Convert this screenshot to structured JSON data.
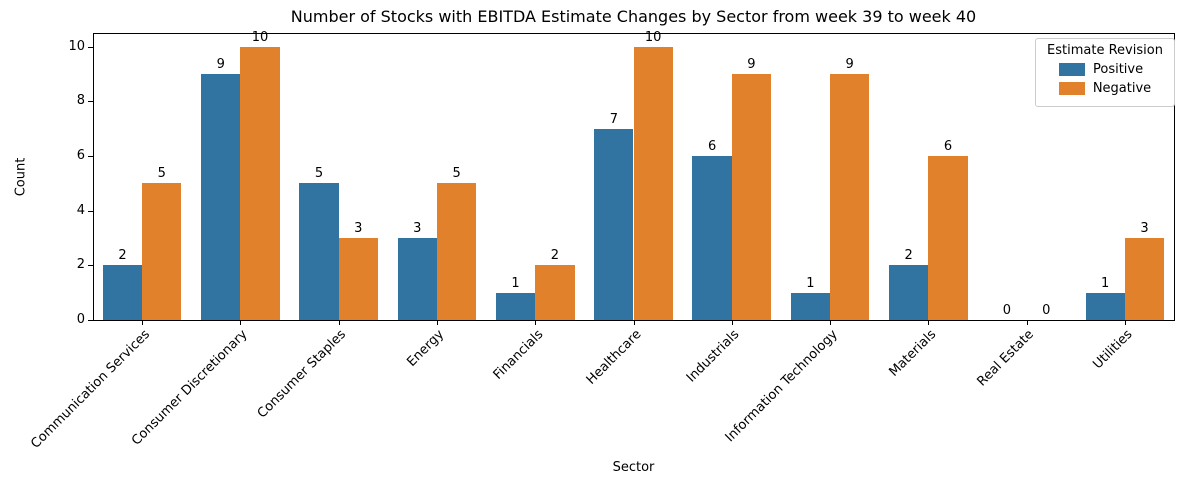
{
  "chart_data": {
    "type": "bar",
    "title": "Number of Stocks with EBITDA Estimate Changes by Sector from week 39 to week 40",
    "xlabel": "Sector",
    "ylabel": "Count",
    "categories": [
      "Communication Services",
      "Consumer Discretionary",
      "Consumer Staples",
      "Energy",
      "Financials",
      "Healthcare",
      "Industrials",
      "Information Technology",
      "Materials",
      "Real Estate",
      "Utilities"
    ],
    "series": [
      {
        "name": "Positive",
        "color": "#3274a1",
        "values": [
          2,
          9,
          5,
          3,
          1,
          7,
          6,
          1,
          2,
          0,
          1
        ]
      },
      {
        "name": "Negative",
        "color": "#e1812c",
        "values": [
          5,
          10,
          3,
          5,
          2,
          10,
          9,
          9,
          6,
          0,
          3
        ]
      }
    ],
    "ylim": [
      0,
      10.5
    ],
    "yticks": [
      0,
      2,
      4,
      6,
      8,
      10
    ],
    "legend_title": "Estimate Revision",
    "legend_position": "upper right",
    "grid": false,
    "bar_labels": true,
    "spine_color": "#000000",
    "background_color": "#ffffff"
  }
}
